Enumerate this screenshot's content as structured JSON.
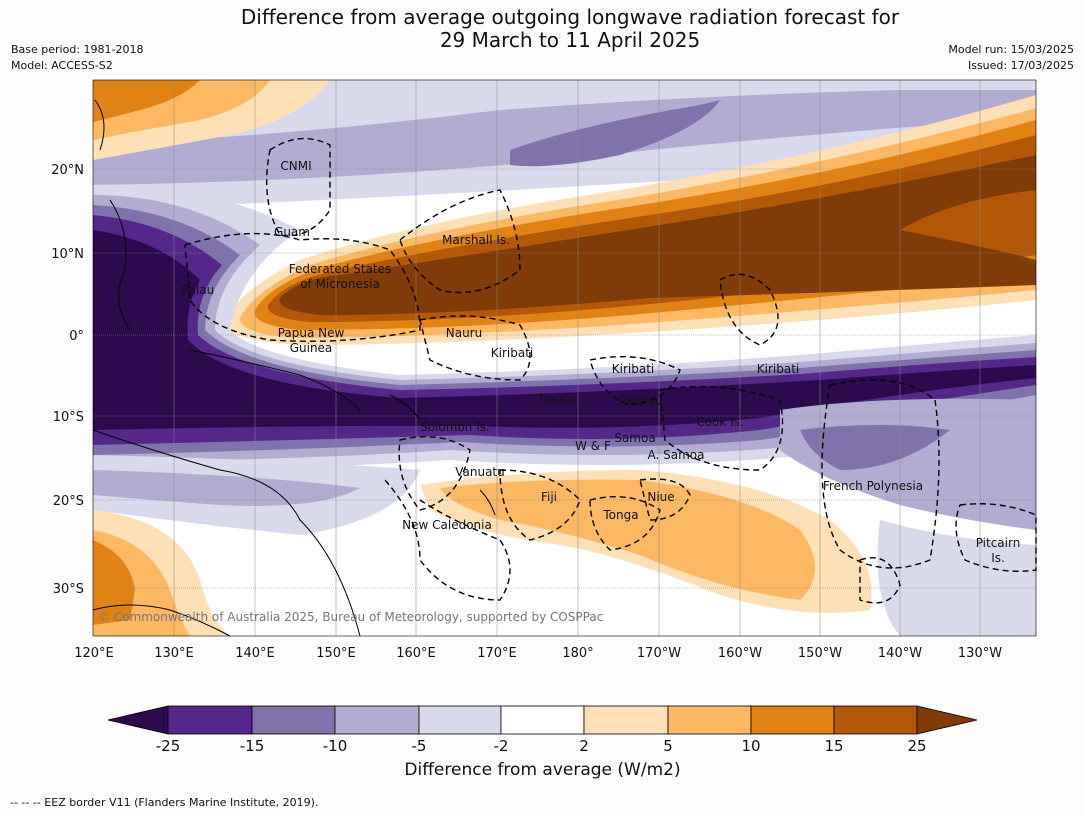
{
  "title_line1": "Difference from average outgoing longwave radiation forecast for",
  "title_line2": "29 March to 11 April 2025",
  "base_period": "Base period: 1981-2018",
  "model": "Model: ACCESS-S2",
  "model_run": "Model run: 15/03/2025",
  "issued": "Issued: 17/03/2025",
  "copyright": "© Commonwealth of Australia 2025, Bureau of Meteorology, supported by COSPPac",
  "lon_ticks": [
    "120°E",
    "130°E",
    "140°E",
    "150°E",
    "160°E",
    "170°E",
    "180°",
    "170°W",
    "160°W",
    "150°W",
    "140°W",
    "130°W"
  ],
  "lat_ticks": [
    "20°N",
    "10°N",
    "0°",
    "10°S",
    "20°S",
    "30°S"
  ],
  "region_labels": [
    {
      "text": "CNMI"
    },
    {
      "text": "Guam"
    },
    {
      "text": "Marshall Is."
    },
    {
      "text": "Federated States"
    },
    {
      "text": "of Micronesia"
    },
    {
      "text": "Palau"
    },
    {
      "text": "Papua New"
    },
    {
      "text": "Guinea"
    },
    {
      "text": "Nauru"
    },
    {
      "text": "Kiribati"
    },
    {
      "text": "Kiribati"
    },
    {
      "text": "Kiribati"
    },
    {
      "text": "Tuvalu"
    },
    {
      "text": "Tokelau"
    },
    {
      "text": "Solomon Is."
    },
    {
      "text": "Cook Is."
    },
    {
      "text": "Samoa"
    },
    {
      "text": "W & F"
    },
    {
      "text": "A. Samoa"
    },
    {
      "text": "Vanuatu"
    },
    {
      "text": "Fiji"
    },
    {
      "text": "Niue"
    },
    {
      "text": "French Polynesia"
    },
    {
      "text": "Tonga"
    },
    {
      "text": "New Caledonia"
    },
    {
      "text": "Pitcairn"
    },
    {
      "text": "Is."
    }
  ],
  "colorbar": {
    "ticks": [
      "-25",
      "-15",
      "-10",
      "-5",
      "-2",
      "2",
      "5",
      "10",
      "15",
      "25"
    ],
    "colors": [
      "#2d0a4e",
      "#542788",
      "#8073ac",
      "#b2abd2",
      "#d8daeb",
      "#ffffff",
      "#fee0b6",
      "#fdb863",
      "#e08214",
      "#b35806",
      "#7f3b08"
    ],
    "title": "Difference from average (W/m2)"
  },
  "footnote": "--  --  -- EEZ border V11 (Flanders Marine Institute, 2019)."
}
